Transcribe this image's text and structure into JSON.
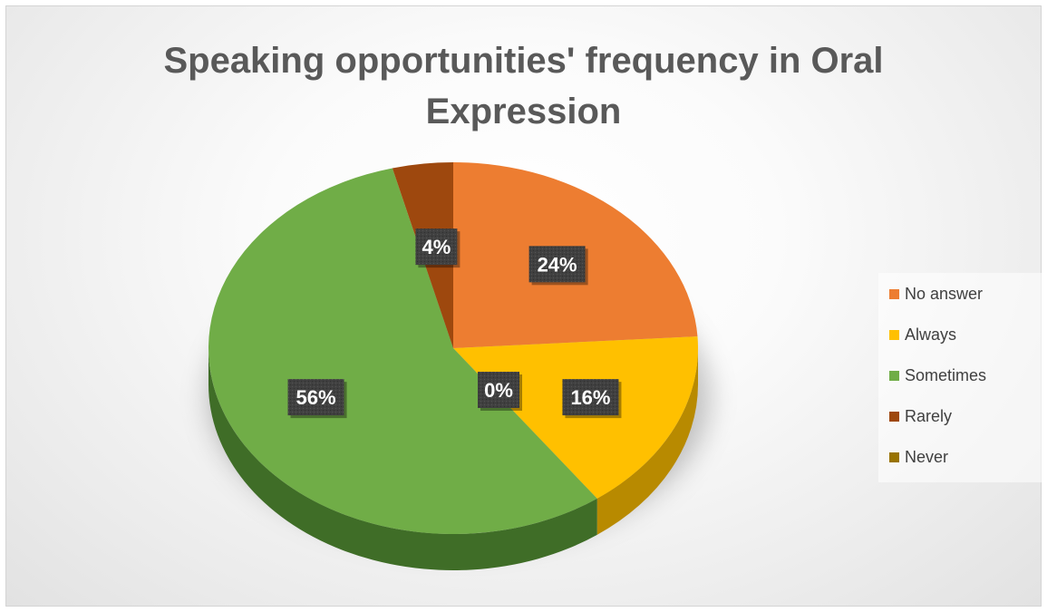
{
  "chart_data": {
    "type": "pie",
    "title": "Speaking opportunities' frequency in Oral Expression",
    "title_lines": [
      "Speaking opportunities' frequency in Oral",
      "Expression"
    ],
    "style": "3d",
    "legend_position": "right",
    "categories": [
      "No answer",
      "Always",
      "Sometimes",
      "Rarely",
      "Never"
    ],
    "values": [
      24,
      16,
      56,
      4,
      0
    ],
    "labels": [
      "24%",
      "16%",
      "56%",
      "4%",
      "0%"
    ],
    "unit": "%",
    "colors": [
      "#ed7d31",
      "#ffc000",
      "#70ad47",
      "#9e480e",
      "#997300"
    ],
    "side_colors": [
      "#b35c22",
      "#b88a00",
      "#3f6d27",
      "#6b300a",
      "#6b5100"
    ]
  }
}
